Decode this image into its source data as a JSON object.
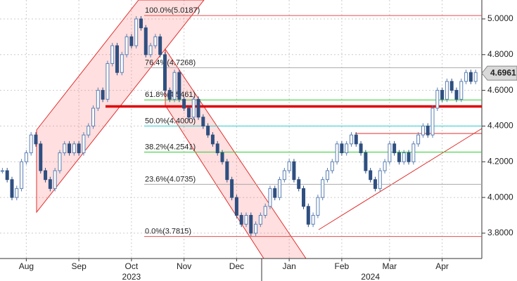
{
  "chart_data": {
    "type": "candlestick",
    "close": [
      4.15,
      4.1,
      4.0,
      4.05,
      4.2,
      4.25,
      4.35,
      4.3,
      4.15,
      4.1,
      4.05,
      4.15,
      4.25,
      4.3,
      4.25,
      4.3,
      4.25,
      4.35,
      4.4,
      4.5,
      4.6,
      4.55,
      4.75,
      4.85,
      4.7,
      4.8,
      4.9,
      4.85,
      5.0,
      4.95,
      4.8,
      4.85,
      4.9,
      4.8,
      4.6,
      4.55,
      4.7,
      4.55,
      4.5,
      4.45,
      4.55,
      4.45,
      4.4,
      4.35,
      4.3,
      4.25,
      4.2,
      4.1,
      4.0,
      3.9,
      3.85,
      3.9,
      3.8,
      3.85,
      3.9,
      3.95,
      4.05,
      4.0,
      4.1,
      4.15,
      4.2,
      4.1,
      4.05,
      3.95,
      3.85,
      3.9,
      4.0,
      4.1,
      4.15,
      4.2,
      4.3,
      4.25,
      4.3,
      4.35,
      4.3,
      4.25,
      4.15,
      4.1,
      4.05,
      4.15,
      4.2,
      4.3,
      4.25,
      4.2,
      4.25,
      4.2,
      4.3,
      4.35,
      4.4,
      4.35,
      4.5,
      4.6,
      4.55,
      4.65,
      4.6,
      4.55,
      4.65,
      4.7,
      4.65,
      4.7
    ],
    "up_color": "#5b7fb3",
    "down_color": "#2f4f80",
    "xlim": [
      -0.5,
      100.3
    ],
    "xticks": [
      {
        "value": 5,
        "label": "Aug"
      },
      {
        "value": 16,
        "label": "Sep"
      },
      {
        "value": 27,
        "label": "Oct"
      },
      {
        "value": 38,
        "label": "Nov"
      },
      {
        "value": 49,
        "label": "Dec"
      },
      {
        "value": 60,
        "label": "Jan"
      },
      {
        "value": 71,
        "label": "Feb"
      },
      {
        "value": 81,
        "label": "Mar"
      },
      {
        "value": 92,
        "label": "Apr"
      }
    ],
    "year_labels": [
      {
        "label": "2023",
        "x": 27
      },
      {
        "label": "2024",
        "x": 77
      }
    ],
    "ylim": [
      3.658,
      5.106
    ],
    "yticks": [
      {
        "value": 3.8,
        "label": "3.8000"
      },
      {
        "value": 4.0,
        "label": "4.0000"
      },
      {
        "value": 4.2,
        "label": "4.2000"
      },
      {
        "value": 4.4,
        "label": "4.4000"
      },
      {
        "value": 4.6,
        "label": "4.6000"
      },
      {
        "value": 4.8,
        "label": "4.8000"
      },
      {
        "value": 5.0,
        "label": "5.0000"
      }
    ],
    "grid": true,
    "fib_levels": [
      {
        "label": "100.0%(5.0187)",
        "value": 5.0187,
        "color": "#e05050"
      },
      {
        "label": "76.4%(4.7268)",
        "value": 4.7268,
        "color": "#aaaaaa"
      },
      {
        "label": "61.8%(4.5461)",
        "value": 4.5461,
        "color": "#33cc33"
      },
      {
        "label": "50.0%(4.4000)",
        "value": 4.4,
        "color": "#33cccc"
      },
      {
        "label": "38.2%(4.2541)",
        "value": 4.2541,
        "color": "#33cc33"
      },
      {
        "label": "23.6%(4.0735)",
        "value": 4.0735,
        "color": "#aaaaaa"
      },
      {
        "label": "0.0%(3.7815)",
        "value": 3.7815,
        "color": "#e05050"
      }
    ],
    "hline": {
      "value": 4.51,
      "color": "#e00000"
    },
    "last_price": {
      "value": 4.6961,
      "label": "4.6961"
    }
  }
}
